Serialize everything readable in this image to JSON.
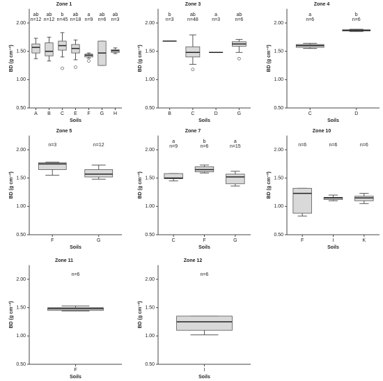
{
  "chart_data": [
    {
      "type": "box",
      "title": "Zone 1",
      "xlabel": "Soils",
      "ylabel": "BD (g cm⁻³)",
      "ylim": [
        0.5,
        2.25
      ],
      "yticks": [
        {
          "value": 0.5,
          "label": "0.50"
        },
        {
          "value": 1.0,
          "label": "1.00"
        },
        {
          "value": 1.5,
          "label": "1.50"
        },
        {
          "value": 2.0,
          "label": "2.00"
        }
      ],
      "categories": [
        "A",
        "B",
        "C",
        "E",
        "F",
        "G",
        "H"
      ],
      "letters": [
        "ab",
        "ab",
        "b",
        "ab",
        "a",
        "ab",
        "ab"
      ],
      "n_labels": [
        "n=12",
        "n=12",
        "n=45",
        "n=18",
        "n=9",
        "n=6",
        "n=3"
      ],
      "boxes": [
        {
          "whisker_low": 1.37,
          "q1": 1.47,
          "median": 1.57,
          "q3": 1.63,
          "whisker_high": 1.73,
          "outliers": []
        },
        {
          "whisker_low": 1.33,
          "q1": 1.42,
          "median": 1.5,
          "q3": 1.65,
          "whisker_high": 1.75,
          "outliers": []
        },
        {
          "whisker_low": 1.4,
          "q1": 1.52,
          "median": 1.6,
          "q3": 1.68,
          "whisker_high": 1.83,
          "outliers": [
            1.2
          ]
        },
        {
          "whisker_low": 1.35,
          "q1": 1.47,
          "median": 1.55,
          "q3": 1.62,
          "whisker_high": 1.7,
          "outliers": [
            1.22
          ]
        },
        {
          "whisker_low": 1.38,
          "q1": 1.4,
          "median": 1.43,
          "q3": 1.45,
          "whisker_high": 1.47,
          "outliers": [
            1.33
          ]
        },
        {
          "whisker_low": 1.25,
          "q1": 1.25,
          "median": 1.47,
          "q3": 1.68,
          "whisker_high": 1.68,
          "outliers": []
        },
        {
          "whisker_low": 1.46,
          "q1": 1.48,
          "median": 1.51,
          "q3": 1.53,
          "whisker_high": 1.56,
          "outliers": []
        }
      ]
    },
    {
      "type": "box",
      "title": "Zone 3",
      "xlabel": "Soils",
      "ylabel": "BD (g cm⁻³)",
      "ylim": [
        0.5,
        2.25
      ],
      "yticks": [
        {
          "value": 0.5,
          "label": "0.50"
        },
        {
          "value": 1.0,
          "label": "1.00"
        },
        {
          "value": 1.5,
          "label": "1.50"
        },
        {
          "value": 2.0,
          "label": "2.00"
        }
      ],
      "categories": [
        "B",
        "C",
        "D",
        "G"
      ],
      "letters": [
        "b",
        "ab",
        "a",
        "ab"
      ],
      "n_labels": [
        "n=3",
        "n=48",
        "n=3",
        "n=6"
      ],
      "boxes": [
        {
          "whisker_low": 1.68,
          "q1": 1.68,
          "median": 1.68,
          "q3": 1.68,
          "whisker_high": 1.68,
          "outliers": []
        },
        {
          "whisker_low": 1.27,
          "q1": 1.4,
          "median": 1.48,
          "q3": 1.58,
          "whisker_high": 1.79,
          "outliers": [
            1.18
          ]
        },
        {
          "whisker_low": 1.48,
          "q1": 1.48,
          "median": 1.48,
          "q3": 1.48,
          "whisker_high": 1.48,
          "outliers": []
        },
        {
          "whisker_low": 1.48,
          "q1": 1.59,
          "median": 1.63,
          "q3": 1.67,
          "whisker_high": 1.71,
          "outliers": [
            1.37
          ]
        }
      ]
    },
    {
      "type": "box",
      "title": "Zone 4",
      "xlabel": "Soils",
      "ylabel": "BD (g cm⁻³)",
      "ylim": [
        0.5,
        2.25
      ],
      "yticks": [
        {
          "value": 0.5,
          "label": "0.50"
        },
        {
          "value": 1.0,
          "label": "1.00"
        },
        {
          "value": 1.5,
          "label": "1.50"
        },
        {
          "value": 2.0,
          "label": "2.00"
        }
      ],
      "categories": [
        "C",
        "D"
      ],
      "letters": [
        "a",
        "b"
      ],
      "n_labels": [
        "n=6",
        "n=6"
      ],
      "boxes": [
        {
          "whisker_low": 1.55,
          "q1": 1.57,
          "median": 1.6,
          "q3": 1.62,
          "whisker_high": 1.64,
          "outliers": []
        },
        {
          "whisker_low": 1.85,
          "q1": 1.86,
          "median": 1.87,
          "q3": 1.88,
          "whisker_high": 1.89,
          "outliers": []
        }
      ]
    },
    {
      "type": "box",
      "title": "Zone 5",
      "xlabel": "Soils",
      "ylabel": "BD (g cm⁻³)",
      "ylim": [
        0.5,
        2.25
      ],
      "yticks": [
        {
          "value": 0.5,
          "label": "0.50"
        },
        {
          "value": 1.0,
          "label": "1.00"
        },
        {
          "value": 1.5,
          "label": "1.50"
        },
        {
          "value": 2.0,
          "label": "2.00"
        }
      ],
      "categories": [
        "F",
        "G"
      ],
      "n_labels": [
        "n=3",
        "n=12"
      ],
      "boxes": [
        {
          "whisker_low": 1.55,
          "q1": 1.65,
          "median": 1.75,
          "q3": 1.77,
          "whisker_high": 1.78,
          "outliers": []
        },
        {
          "whisker_low": 1.48,
          "q1": 1.52,
          "median": 1.57,
          "q3": 1.65,
          "whisker_high": 1.73,
          "outliers": []
        }
      ]
    },
    {
      "type": "box",
      "title": "Zone 7",
      "xlabel": "Soils",
      "ylabel": "BD (g cm⁻³)",
      "ylim": [
        0.5,
        2.25
      ],
      "yticks": [
        {
          "value": 0.5,
          "label": "0.50"
        },
        {
          "value": 1.0,
          "label": "1.00"
        },
        {
          "value": 1.5,
          "label": "1.50"
        },
        {
          "value": 2.0,
          "label": "2.00"
        }
      ],
      "categories": [
        "C",
        "F",
        "G"
      ],
      "letters": [
        "a",
        "b",
        "a"
      ],
      "n_labels": [
        "n=9",
        "n=6",
        "n=15"
      ],
      "boxes": [
        {
          "whisker_low": 1.45,
          "q1": 1.49,
          "median": 1.5,
          "q3": 1.58,
          "whisker_high": 1.58,
          "outliers": []
        },
        {
          "whisker_low": 1.59,
          "q1": 1.61,
          "median": 1.65,
          "q3": 1.7,
          "whisker_high": 1.73,
          "outliers": []
        },
        {
          "whisker_low": 1.36,
          "q1": 1.4,
          "median": 1.52,
          "q3": 1.57,
          "whisker_high": 1.62,
          "outliers": []
        }
      ]
    },
    {
      "type": "box",
      "title": "Zone 10",
      "xlabel": "Soils",
      "ylabel": "BD (g cm⁻³)",
      "ylim": [
        0.5,
        2.25
      ],
      "yticks": [
        {
          "value": 0.5,
          "label": "0.50"
        },
        {
          "value": 1.0,
          "label": "1.00"
        },
        {
          "value": 1.5,
          "label": "1.50"
        },
        {
          "value": 2.0,
          "label": "2.00"
        }
      ],
      "categories": [
        "F",
        "I",
        "K"
      ],
      "n_labels": [
        "n=6",
        "n=6",
        "n=6"
      ],
      "boxes": [
        {
          "whisker_low": 0.83,
          "q1": 0.88,
          "median": 1.23,
          "q3": 1.32,
          "whisker_high": 1.32,
          "outliers": []
        },
        {
          "whisker_low": 1.1,
          "q1": 1.12,
          "median": 1.15,
          "q3": 1.16,
          "whisker_high": 1.2,
          "outliers": []
        },
        {
          "whisker_low": 1.05,
          "q1": 1.1,
          "median": 1.15,
          "q3": 1.18,
          "whisker_high": 1.23,
          "outliers": []
        }
      ]
    },
    {
      "type": "box",
      "title": "Zone 11",
      "xlabel": "Soils",
      "ylabel": "BD (g cm⁻³)",
      "ylim": [
        0.5,
        2.25
      ],
      "yticks": [
        {
          "value": 0.5,
          "label": "0.50"
        },
        {
          "value": 1.0,
          "label": "1.00"
        },
        {
          "value": 1.5,
          "label": "1.50"
        },
        {
          "value": 2.0,
          "label": "2.00"
        }
      ],
      "categories": [
        "F"
      ],
      "n_labels": [
        "n=6"
      ],
      "boxes": [
        {
          "whisker_low": 1.44,
          "q1": 1.45,
          "median": 1.48,
          "q3": 1.5,
          "whisker_high": 1.53,
          "outliers": []
        }
      ]
    },
    {
      "type": "box",
      "title": "Zone 12",
      "xlabel": "Soils",
      "ylabel": "BD (g cm⁻³)",
      "ylim": [
        0.5,
        2.25
      ],
      "yticks": [
        {
          "value": 0.5,
          "label": "0.50"
        },
        {
          "value": 1.0,
          "label": "1.00"
        },
        {
          "value": 1.5,
          "label": "1.50"
        },
        {
          "value": 2.0,
          "label": "2.00"
        }
      ],
      "categories": [
        "I"
      ],
      "n_labels": [
        "n=6"
      ],
      "boxes": [
        {
          "whisker_low": 1.02,
          "q1": 1.1,
          "median": 1.25,
          "q3": 1.35,
          "whisker_high": 1.35,
          "outliers": []
        }
      ]
    }
  ]
}
